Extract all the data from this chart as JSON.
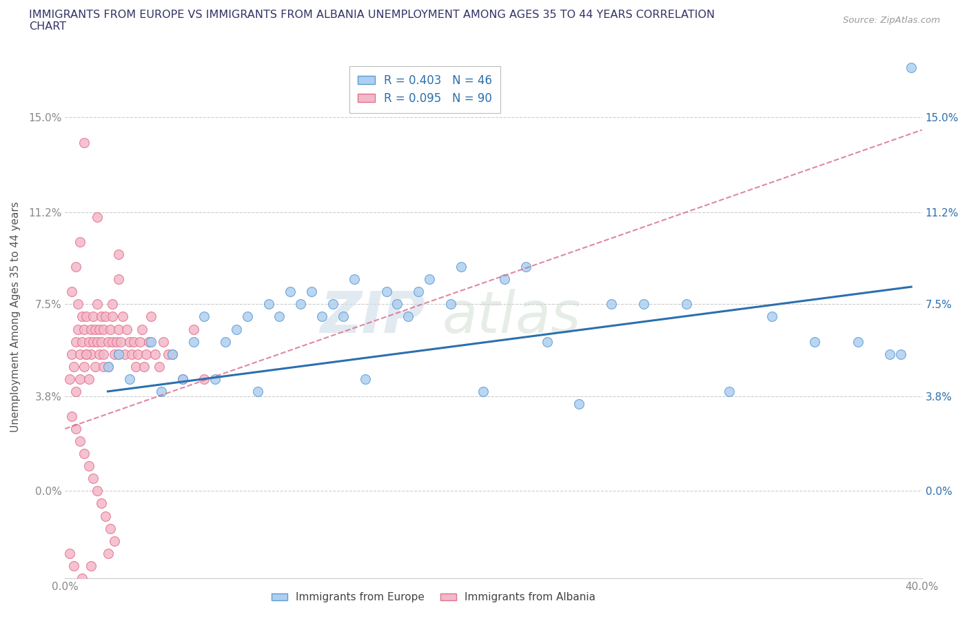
{
  "title": "IMMIGRANTS FROM EUROPE VS IMMIGRANTS FROM ALBANIA UNEMPLOYMENT AMONG AGES 35 TO 44 YEARS CORRELATION\nCHART",
  "source_text": "Source: ZipAtlas.com",
  "ylabel": "Unemployment Among Ages 35 to 44 years",
  "xlim": [
    0.0,
    0.4
  ],
  "ylim": [
    -0.035,
    0.175
  ],
  "yticks": [
    0.0,
    0.038,
    0.075,
    0.112,
    0.15
  ],
  "ytick_labels": [
    "0.0%",
    "3.8%",
    "7.5%",
    "11.2%",
    "15.0%"
  ],
  "xticks": [
    0.0,
    0.1,
    0.2,
    0.3,
    0.4
  ],
  "xtick_labels": [
    "0.0%",
    "",
    "",
    "",
    "40.0%"
  ],
  "europe_fill_color": "#aecfef",
  "europe_edge_color": "#5b9bd5",
  "albania_fill_color": "#f4b8c8",
  "albania_edge_color": "#e07090",
  "europe_line_color": "#2c6fad",
  "albania_line_color": "#d46080",
  "R_europe": 0.403,
  "N_europe": 46,
  "R_albania": 0.095,
  "N_albania": 90,
  "europe_scatter_x": [
    0.02,
    0.025,
    0.03,
    0.04,
    0.045,
    0.05,
    0.055,
    0.06,
    0.065,
    0.07,
    0.075,
    0.08,
    0.085,
    0.09,
    0.095,
    0.1,
    0.105,
    0.11,
    0.115,
    0.12,
    0.125,
    0.13,
    0.135,
    0.14,
    0.15,
    0.155,
    0.16,
    0.165,
    0.17,
    0.18,
    0.185,
    0.195,
    0.205,
    0.215,
    0.225,
    0.24,
    0.255,
    0.27,
    0.29,
    0.31,
    0.33,
    0.35,
    0.37,
    0.385,
    0.39,
    0.395
  ],
  "europe_scatter_y": [
    0.05,
    0.055,
    0.045,
    0.06,
    0.04,
    0.055,
    0.045,
    0.06,
    0.07,
    0.045,
    0.06,
    0.065,
    0.07,
    0.04,
    0.075,
    0.07,
    0.08,
    0.075,
    0.08,
    0.07,
    0.075,
    0.07,
    0.085,
    0.045,
    0.08,
    0.075,
    0.07,
    0.08,
    0.085,
    0.075,
    0.09,
    0.04,
    0.085,
    0.09,
    0.06,
    0.035,
    0.075,
    0.075,
    0.075,
    0.04,
    0.07,
    0.06,
    0.06,
    0.055,
    0.055,
    0.17
  ],
  "albania_scatter_x": [
    0.002,
    0.003,
    0.004,
    0.005,
    0.005,
    0.006,
    0.007,
    0.007,
    0.008,
    0.008,
    0.009,
    0.009,
    0.01,
    0.01,
    0.011,
    0.011,
    0.012,
    0.012,
    0.013,
    0.013,
    0.014,
    0.014,
    0.015,
    0.015,
    0.016,
    0.016,
    0.017,
    0.017,
    0.018,
    0.018,
    0.019,
    0.02,
    0.02,
    0.021,
    0.022,
    0.022,
    0.023,
    0.024,
    0.025,
    0.025,
    0.026,
    0.027,
    0.028,
    0.029,
    0.03,
    0.031,
    0.032,
    0.033,
    0.034,
    0.035,
    0.036,
    0.037,
    0.038,
    0.039,
    0.04,
    0.042,
    0.044,
    0.046,
    0.048,
    0.05,
    0.055,
    0.06,
    0.065,
    0.003,
    0.005,
    0.007,
    0.009,
    0.011,
    0.013,
    0.015,
    0.017,
    0.019,
    0.021,
    0.023,
    0.003,
    0.005,
    0.007,
    0.009,
    0.018,
    0.022,
    0.025,
    0.025,
    0.015,
    0.006,
    0.01,
    0.002,
    0.004,
    0.008,
    0.012,
    0.02
  ],
  "albania_scatter_y": [
    0.045,
    0.055,
    0.05,
    0.06,
    0.04,
    0.065,
    0.055,
    0.045,
    0.06,
    0.07,
    0.05,
    0.065,
    0.055,
    0.07,
    0.06,
    0.045,
    0.065,
    0.055,
    0.07,
    0.06,
    0.065,
    0.05,
    0.075,
    0.06,
    0.065,
    0.055,
    0.07,
    0.06,
    0.065,
    0.055,
    0.07,
    0.06,
    0.05,
    0.065,
    0.06,
    0.07,
    0.055,
    0.06,
    0.065,
    0.055,
    0.06,
    0.07,
    0.055,
    0.065,
    0.06,
    0.055,
    0.06,
    0.05,
    0.055,
    0.06,
    0.065,
    0.05,
    0.055,
    0.06,
    0.07,
    0.055,
    0.05,
    0.06,
    0.055,
    0.055,
    0.045,
    0.065,
    0.045,
    0.03,
    0.025,
    0.02,
    0.015,
    0.01,
    0.005,
    0.0,
    -0.005,
    -0.01,
    -0.015,
    -0.02,
    0.08,
    0.09,
    0.1,
    0.14,
    0.05,
    0.075,
    0.085,
    0.095,
    0.11,
    0.075,
    0.055,
    -0.025,
    -0.03,
    -0.035,
    -0.03,
    -0.025
  ],
  "albania_line_x": [
    0.0,
    0.4
  ],
  "albania_line_y": [
    0.025,
    0.145
  ],
  "europe_line_x": [
    0.02,
    0.395
  ],
  "europe_line_y": [
    0.04,
    0.082
  ]
}
